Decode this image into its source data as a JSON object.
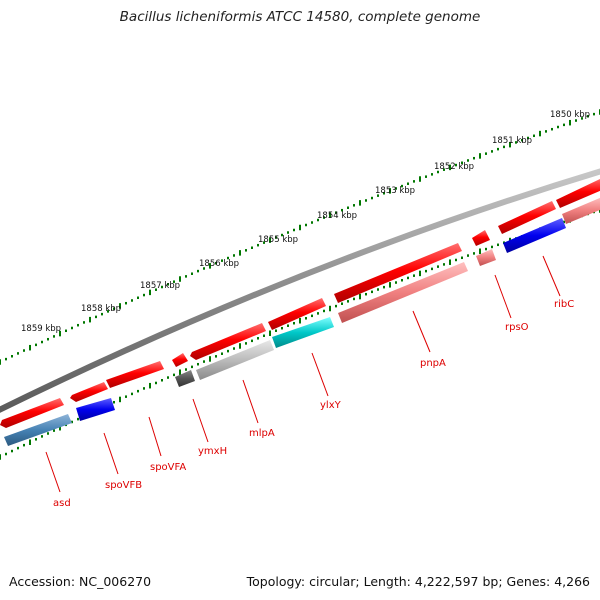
{
  "title": "Bacillus licheniformis ATCC 14580, complete genome",
  "accession_text": "Accession: NC_006270",
  "summary_text": "Topology: circular; Length: 4,222,597 bp; Genes: 4,266",
  "scale_ticks": [
    {
      "label": "1850 kbp",
      "kbp": 1850
    },
    {
      "label": "1851 kbp",
      "kbp": 1851
    },
    {
      "label": "1852 kbp",
      "kbp": 1852
    },
    {
      "label": "1853 kbp",
      "kbp": 1853
    },
    {
      "label": "1854 kbp",
      "kbp": 1854
    },
    {
      "label": "1855 kbp",
      "kbp": 1855
    },
    {
      "label": "1856 kbp",
      "kbp": 1856
    },
    {
      "label": "1857 kbp",
      "kbp": 1857
    },
    {
      "label": "1858 kbp",
      "kbp": 1858
    },
    {
      "label": "1859 kbp",
      "kbp": 1859
    }
  ],
  "gene_labels": [
    "asd",
    "spoVFB",
    "spoVFA",
    "ymxH",
    "mlpA",
    "ylxY",
    "pnpA",
    "rpsO",
    "ribC"
  ],
  "colors": {
    "backbone": "#8a8a8a",
    "cds": "#ff0000",
    "feature_light_red": "#f08080",
    "feature_blue": "#0000ee",
    "feature_steel_blue": "#4682b4",
    "feature_cyan": "#00c8c8",
    "feature_gray": "#bbbbbb",
    "feature_dark_gray": "#555555",
    "gc_skew_dots": "#007700",
    "label_text": "#dd0000"
  }
}
